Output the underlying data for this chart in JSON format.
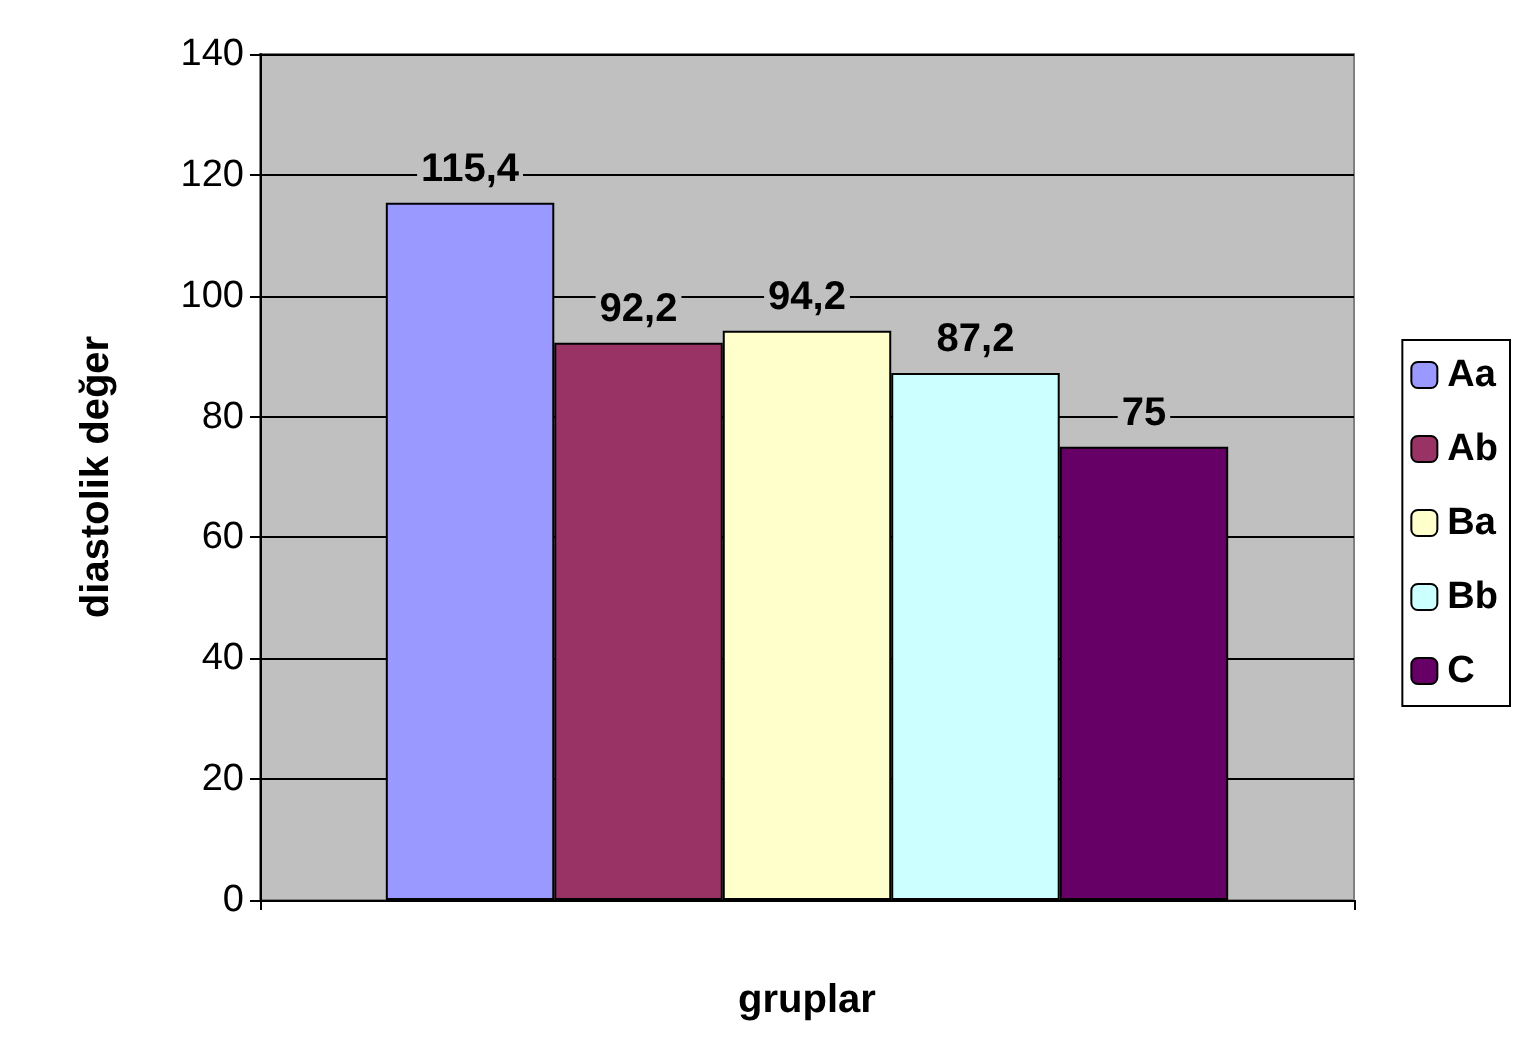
{
  "chart_data": {
    "type": "bar",
    "xlabel": "gruplar",
    "ylabel": "diastolik değer",
    "categories": [
      null
    ],
    "series": [
      {
        "name": "Aa",
        "color": "#9999ff",
        "values": [
          115.4
        ],
        "value_labels": [
          "115,4"
        ]
      },
      {
        "name": "Ab",
        "color": "#993366",
        "values": [
          92.2
        ],
        "value_labels": [
          "92,2"
        ]
      },
      {
        "name": "Ba",
        "color": "#ffffcc",
        "values": [
          94.2
        ],
        "value_labels": [
          "94,2"
        ]
      },
      {
        "name": "Bb",
        "color": "#ccffff",
        "values": [
          87.2
        ],
        "value_labels": [
          "87,2"
        ]
      },
      {
        "name": "C",
        "color": "#660066",
        "values": [
          75
        ],
        "value_labels": [
          "75"
        ]
      }
    ],
    "ylim": [
      0,
      140
    ],
    "yticks": [
      0,
      20,
      40,
      60,
      80,
      100,
      120,
      140
    ],
    "grid": "y",
    "legend": "right",
    "tick_labels": "y"
  }
}
